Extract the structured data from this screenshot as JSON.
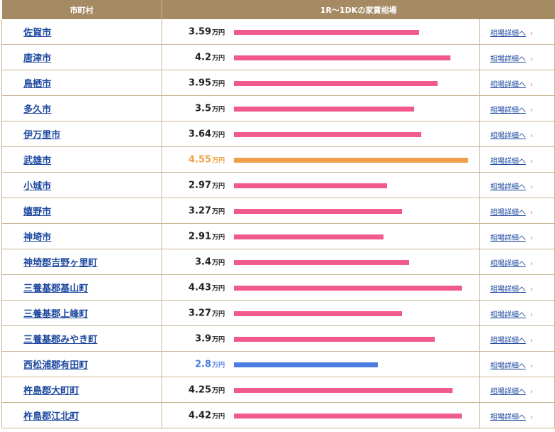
{
  "header": {
    "col_city": "市町村",
    "col_rent": "1R～1DKの家賃相場"
  },
  "unit_label": "万円",
  "detail_label": "相場詳細へ",
  "chevron": "›",
  "colors": {
    "header_bg": "#a68a63",
    "bar_default": "#f05a8c",
    "bar_highest": "#f0a04a",
    "bar_lowest": "#4a7be0",
    "link": "#1f4aa0"
  },
  "scale_max": 4.55,
  "rows": [
    {
      "city": "佐賀市",
      "rent": "3.59",
      "value": 3.59,
      "highlight": ""
    },
    {
      "city": "唐津市",
      "rent": "4.2",
      "value": 4.2,
      "highlight": ""
    },
    {
      "city": "鳥栖市",
      "rent": "3.95",
      "value": 3.95,
      "highlight": ""
    },
    {
      "city": "多久市",
      "rent": "3.5",
      "value": 3.5,
      "highlight": ""
    },
    {
      "city": "伊万里市",
      "rent": "3.64",
      "value": 3.64,
      "highlight": ""
    },
    {
      "city": "武雄市",
      "rent": "4.55",
      "value": 4.55,
      "highlight": "high"
    },
    {
      "city": "小城市",
      "rent": "2.97",
      "value": 2.97,
      "highlight": ""
    },
    {
      "city": "嬉野市",
      "rent": "3.27",
      "value": 3.27,
      "highlight": ""
    },
    {
      "city": "神埼市",
      "rent": "2.91",
      "value": 2.91,
      "highlight": ""
    },
    {
      "city": "神埼郡吉野ヶ里町",
      "rent": "3.4",
      "value": 3.4,
      "highlight": ""
    },
    {
      "city": "三養基郡基山町",
      "rent": "4.43",
      "value": 4.43,
      "highlight": ""
    },
    {
      "city": "三養基郡上峰町",
      "rent": "3.27",
      "value": 3.27,
      "highlight": ""
    },
    {
      "city": "三養基郡みやき町",
      "rent": "3.9",
      "value": 3.9,
      "highlight": ""
    },
    {
      "city": "西松浦郡有田町",
      "rent": "2.8",
      "value": 2.8,
      "highlight": "low"
    },
    {
      "city": "杵島郡大町町",
      "rent": "4.25",
      "value": 4.25,
      "highlight": ""
    },
    {
      "city": "杵島郡江北町",
      "rent": "4.42",
      "value": 4.42,
      "highlight": ""
    }
  ]
}
